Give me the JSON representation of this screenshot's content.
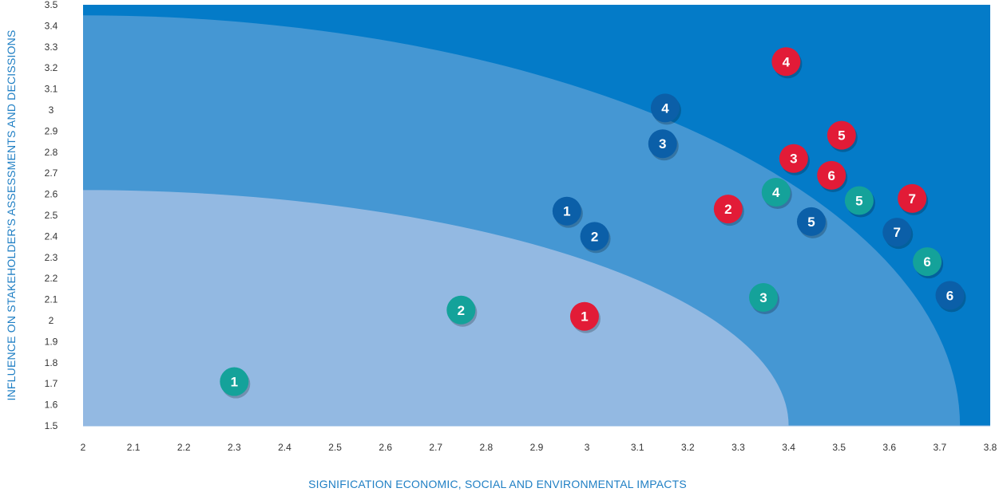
{
  "chart_data": {
    "type": "scatter",
    "title": "",
    "xlabel": "SIGNIFICATION ECONOMIC, SOCIAL AND ENVIRONMENTAL IMPACTS",
    "ylabel": "INFLUENCE ON STAKEHOLDER'S ASSESSMENTS AND DECISSIONS",
    "xlim": [
      2,
      3.8
    ],
    "ylim": [
      1.5,
      3.5
    ],
    "xticks": [
      "2",
      "2.1",
      "2.2",
      "2.3",
      "2.4",
      "2.5",
      "2.6",
      "2.7",
      "2.8",
      "2.9",
      "3",
      "3.1",
      "3.2",
      "3.3",
      "3.4",
      "3.5",
      "3.6",
      "3.7",
      "3.8"
    ],
    "yticks": [
      "1.5",
      "1.6",
      "1.7",
      "1.8",
      "1.9",
      "2",
      "2.1",
      "2.2",
      "2.3",
      "2.4",
      "2.5",
      "2.6",
      "2.7",
      "2.8",
      "2.9",
      "3",
      "3.1",
      "3.2",
      "3.3",
      "3.4",
      "3.5"
    ],
    "grid": false,
    "background_zones": [
      {
        "color": "#93b9e2",
        "x_max": 3.4,
        "y_max": 2.62
      },
      {
        "color": "#4597d3",
        "x_max": 3.74,
        "y_max": 3.45
      },
      {
        "color": "#047bc8",
        "x_max": 3.8,
        "y_max": 3.5
      }
    ],
    "series": [
      {
        "color": "#14a29a",
        "points": [
          {
            "label": "1",
            "x": 2.3,
            "y": 1.71
          },
          {
            "label": "2",
            "x": 2.75,
            "y": 2.05
          },
          {
            "label": "3",
            "x": 3.35,
            "y": 2.11
          },
          {
            "label": "4",
            "x": 3.375,
            "y": 2.61
          },
          {
            "label": "5",
            "x": 3.54,
            "y": 2.57
          },
          {
            "label": "6",
            "x": 3.675,
            "y": 2.28
          }
        ]
      },
      {
        "color": "#e21b37",
        "points": [
          {
            "label": "1",
            "x": 2.995,
            "y": 2.02
          },
          {
            "label": "2",
            "x": 3.28,
            "y": 2.53
          },
          {
            "label": "3",
            "x": 3.41,
            "y": 2.77
          },
          {
            "label": "4",
            "x": 3.395,
            "y": 3.23
          },
          {
            "label": "5",
            "x": 3.505,
            "y": 2.88
          },
          {
            "label": "6",
            "x": 3.485,
            "y": 2.69
          },
          {
            "label": "7",
            "x": 3.645,
            "y": 2.58
          }
        ]
      },
      {
        "color": "#0b5fa8",
        "points": [
          {
            "label": "1",
            "x": 2.96,
            "y": 2.52
          },
          {
            "label": "2",
            "x": 3.015,
            "y": 2.4
          },
          {
            "label": "3",
            "x": 3.15,
            "y": 2.84
          },
          {
            "label": "4",
            "x": 3.155,
            "y": 3.01
          },
          {
            "label": "5",
            "x": 3.445,
            "y": 2.47
          },
          {
            "label": "6",
            "x": 3.72,
            "y": 2.12
          },
          {
            "label": "7",
            "x": 3.615,
            "y": 2.42
          }
        ]
      }
    ]
  }
}
